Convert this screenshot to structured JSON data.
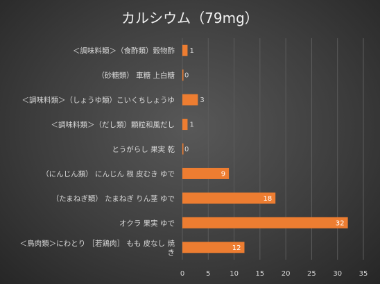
{
  "chart_data": {
    "type": "bar",
    "orientation": "horizontal",
    "title": "カルシウム（79mg）",
    "categories": [
      "＜調味料類＞（食酢類）穀物酢",
      "（砂糖類） 車糖 上白糖",
      "＜調味料類＞（しょうゆ類）こいくちしょうゆ",
      "＜調味料類＞（だし類）顆粒和風だし",
      "とうがらし 果実 乾",
      "（にんじん類） にんじん 根 皮むき ゆで",
      "（たまねぎ類） たまねぎ りん茎 ゆで",
      "オクラ 果実 ゆで",
      "＜鳥肉類＞にわとり ［若鶏肉］ もも 皮なし 焼き"
    ],
    "category_lines": [
      [
        "＜調味料類＞（食酢類）穀物酢"
      ],
      [
        "（砂糖類） 車糖 上白糖"
      ],
      [
        "＜調味料類＞（しょうゆ類）こいくちしょうゆ"
      ],
      [
        "＜調味料類＞（だし類）顆粒和風だし"
      ],
      [
        "とうがらし 果実 乾"
      ],
      [
        "（にんじん類） にんじん 根 皮むき ゆで"
      ],
      [
        "（たまねぎ類） たまねぎ りん茎 ゆで"
      ],
      [
        "オクラ 果実 ゆで"
      ],
      [
        "＜鳥肉類＞にわとり ［若鶏肉］ もも 皮なし 焼",
        "き"
      ]
    ],
    "values": [
      1,
      0,
      3,
      1,
      0,
      9,
      18,
      32,
      12
    ],
    "data_labels": [
      "1",
      "0",
      "3",
      "1",
      "0",
      "9",
      "18",
      "32",
      "12"
    ],
    "xlim": [
      0,
      35
    ],
    "xticks": [
      "0",
      "5",
      "10",
      "15",
      "20",
      "25",
      "30",
      "35"
    ],
    "grid": true,
    "legend": "none",
    "colors": {
      "bar": "#ED7D31",
      "text": "#D9D9D9",
      "title": "#F2F2F2",
      "grid": "#5C5C5C"
    }
  }
}
